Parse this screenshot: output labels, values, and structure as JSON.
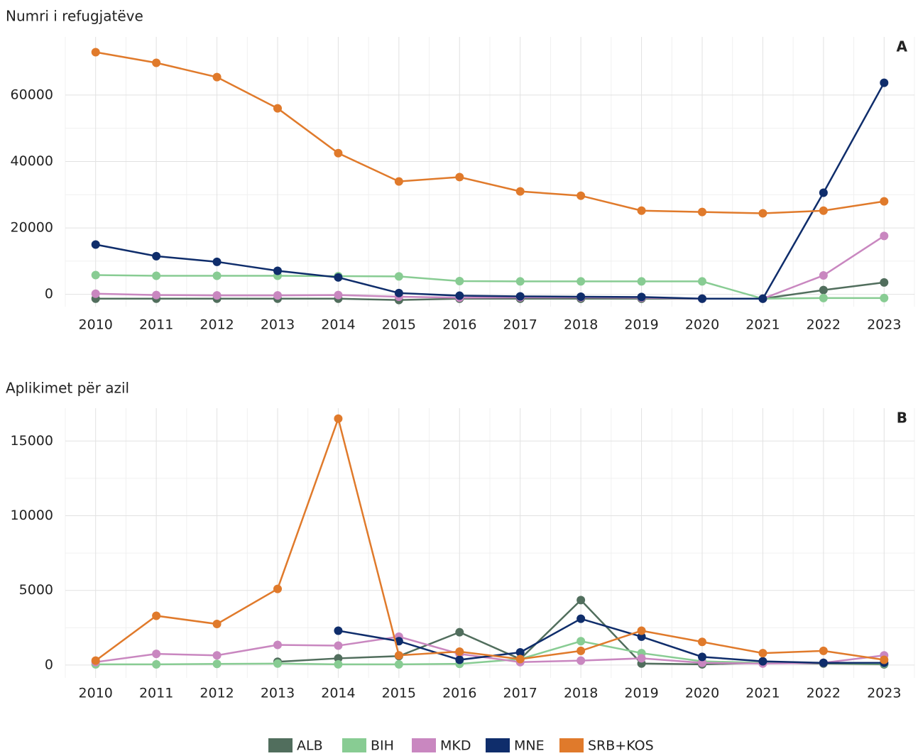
{
  "chart_data": [
    {
      "type": "line",
      "title": "Numri i refugjatëve",
      "annotation": "A",
      "categories": [
        "2010",
        "2011",
        "2012",
        "2013",
        "2014",
        "2015",
        "2016",
        "2017",
        "2018",
        "2019",
        "2020",
        "2021",
        "2022",
        "2023"
      ],
      "series": [
        {
          "name": "ALB",
          "color": "#516e5d",
          "values": [
            -1300,
            -1300,
            -1300,
            -1300,
            -1300,
            -1700,
            -1300,
            -1300,
            -1300,
            -1300,
            -1300,
            -1300,
            1300,
            3600
          ]
        },
        {
          "name": "BIH",
          "color": "#88cc93",
          "values": [
            5800,
            5600,
            5600,
            5600,
            5500,
            5400,
            4000,
            3900,
            3900,
            3900,
            3900,
            -1300,
            -1100,
            -1100
          ]
        },
        {
          "name": "MKD",
          "color": "#c987c0",
          "values": [
            200,
            -200,
            -300,
            -300,
            -200,
            -700,
            -1000,
            -900,
            -900,
            -1000,
            -1300,
            -1300,
            5700,
            17600
          ]
        },
        {
          "name": "MNE",
          "color": "#0f2d6b",
          "values": [
            15000,
            11500,
            9800,
            7100,
            5100,
            400,
            -400,
            -600,
            -700,
            -800,
            -1300,
            -1300,
            30600,
            63700
          ]
        },
        {
          "name": "SRB+KOS",
          "color": "#e07a2b",
          "values": [
            72900,
            69700,
            65400,
            56000,
            42500,
            34000,
            35300,
            31000,
            29700,
            25200,
            24800,
            24400,
            25200,
            28000
          ]
        }
      ],
      "ylim": [
        -3700,
        77500
      ],
      "yticks": [
        0,
        20000,
        40000,
        60000
      ],
      "grid": true
    },
    {
      "type": "line",
      "title": "Aplikimet për azil",
      "annotation": "B",
      "categories": [
        "2010",
        "2011",
        "2012",
        "2013",
        "2014",
        "2015",
        "2016",
        "2017",
        "2018",
        "2019",
        "2020",
        "2021",
        "2022",
        "2023"
      ],
      "series": [
        {
          "name": "ALB",
          "color": "#516e5d",
          "values": [
            null,
            null,
            null,
            220,
            450,
            600,
            2200,
            400,
            4350,
            100,
            50,
            150,
            100,
            50
          ]
        },
        {
          "name": "BIH",
          "color": "#88cc93",
          "values": [
            50,
            50,
            80,
            100,
            50,
            50,
            80,
            400,
            1600,
            800,
            250,
            150,
            150,
            100
          ]
        },
        {
          "name": "MKD",
          "color": "#c987c0",
          "values": [
            200,
            750,
            650,
            1350,
            1300,
            1900,
            750,
            200,
            300,
            450,
            150,
            100,
            150,
            650
          ]
        },
        {
          "name": "MNE",
          "color": "#0f2d6b",
          "values": [
            null,
            null,
            null,
            null,
            2300,
            1600,
            350,
            850,
            3100,
            1900,
            550,
            250,
            150,
            150
          ]
        },
        {
          "name": "SRB+KOS",
          "color": "#e07a2b",
          "values": [
            300,
            3300,
            2750,
            5100,
            16500,
            650,
            900,
            400,
            950,
            2300,
            1550,
            800,
            950,
            350
          ]
        }
      ],
      "ylim": [
        -860,
        17200
      ],
      "yticks": [
        0,
        5000,
        10000,
        15000
      ],
      "grid": true
    }
  ]
}
